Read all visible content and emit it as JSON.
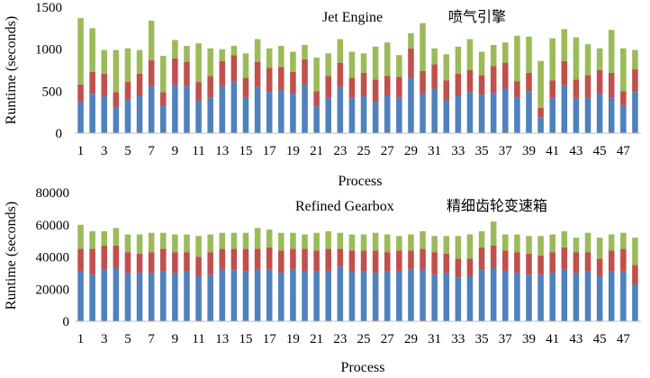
{
  "chart_data": [
    {
      "type": "bar",
      "stacked": true,
      "title": "Jet Engine",
      "subtitle": "喷气引擎",
      "xlabel": "Process",
      "ylabel": "Runtime (seconds)",
      "ylim": [
        0,
        1500
      ],
      "yticks": [
        0,
        500,
        1000,
        1500
      ],
      "xtick_labels": [
        "1",
        "3",
        "5",
        "7",
        "9",
        "11",
        "13",
        "15",
        "17",
        "19",
        "21",
        "23",
        "25",
        "27",
        "29",
        "31",
        "33",
        "35",
        "37",
        "39",
        "41",
        "43",
        "45",
        "47"
      ],
      "grid": false,
      "legend": "none",
      "colors": [
        "#4f81bd",
        "#c0504d",
        "#9bbb59"
      ],
      "categories": [
        "1",
        "2",
        "3",
        "4",
        "5",
        "6",
        "7",
        "8",
        "9",
        "10",
        "11",
        "12",
        "13",
        "14",
        "15",
        "16",
        "17",
        "18",
        "19",
        "20",
        "21",
        "22",
        "23",
        "24",
        "25",
        "26",
        "27",
        "28",
        "29",
        "30",
        "31",
        "32",
        "33",
        "34",
        "35",
        "36",
        "37",
        "38",
        "39",
        "40",
        "41",
        "42",
        "43",
        "44",
        "45",
        "46",
        "47",
        "48"
      ],
      "series": [
        {
          "values": [
            370,
            470,
            440,
            310,
            400,
            450,
            560,
            320,
            580,
            560,
            390,
            420,
            560,
            620,
            420,
            550,
            490,
            510,
            470,
            580,
            320,
            420,
            550,
            420,
            440,
            380,
            450,
            420,
            660,
            470,
            530,
            390,
            450,
            490,
            460,
            480,
            530,
            420,
            500,
            190,
            420,
            570,
            410,
            420,
            470,
            420,
            330,
            490
          ]
        },
        {
          "values": [
            210,
            260,
            270,
            180,
            210,
            260,
            310,
            170,
            310,
            290,
            220,
            260,
            300,
            310,
            240,
            300,
            290,
            280,
            260,
            300,
            180,
            260,
            290,
            240,
            280,
            260,
            230,
            250,
            350,
            270,
            290,
            240,
            260,
            260,
            230,
            320,
            310,
            200,
            220,
            110,
            210,
            290,
            230,
            270,
            280,
            300,
            170,
            270
          ]
        },
        {
          "values": [
            790,
            520,
            280,
            500,
            400,
            280,
            470,
            430,
            220,
            190,
            460,
            330,
            140,
            110,
            290,
            270,
            230,
            250,
            240,
            170,
            400,
            270,
            280,
            310,
            230,
            390,
            400,
            260,
            180,
            570,
            190,
            310,
            320,
            370,
            280,
            250,
            240,
            540,
            430,
            560,
            500,
            380,
            500,
            370,
            260,
            510,
            510,
            230
          ]
        }
      ]
    },
    {
      "type": "bar",
      "stacked": true,
      "title": "Refined Gearbox",
      "subtitle": "精细齿轮变速箱",
      "xlabel": "Process",
      "ylabel": "Runtime (seconds)",
      "ylim": [
        0,
        80000
      ],
      "yticks": [
        0,
        20000,
        40000,
        60000,
        80000
      ],
      "xtick_labels": [
        "1",
        "3",
        "5",
        "7",
        "9",
        "11",
        "13",
        "15",
        "17",
        "19",
        "21",
        "23",
        "25",
        "27",
        "29",
        "31",
        "33",
        "35",
        "37",
        "39",
        "41",
        "43",
        "45",
        "47"
      ],
      "grid": false,
      "legend": "none",
      "colors": [
        "#4f81bd",
        "#c0504d",
        "#9bbb59"
      ],
      "categories": [
        "1",
        "2",
        "3",
        "4",
        "5",
        "6",
        "7",
        "8",
        "9",
        "10",
        "11",
        "12",
        "13",
        "14",
        "15",
        "16",
        "17",
        "18",
        "19",
        "20",
        "21",
        "22",
        "23",
        "24",
        "25",
        "26",
        "27",
        "28",
        "29",
        "30",
        "31",
        "32",
        "33",
        "34",
        "35",
        "36",
        "37",
        "38",
        "39",
        "40",
        "41",
        "42",
        "43",
        "44",
        "45",
        "46",
        "47",
        "48"
      ],
      "series": [
        {
          "values": [
            31000,
            29000,
            32000,
            33000,
            30000,
            30000,
            30000,
            31000,
            30000,
            31000,
            28000,
            29000,
            32000,
            32000,
            31000,
            32000,
            32000,
            30000,
            32000,
            31000,
            31000,
            31000,
            34000,
            31000,
            31000,
            30000,
            31000,
            31000,
            32000,
            32000,
            29000,
            30000,
            27000,
            28000,
            32000,
            33000,
            31000,
            30000,
            29000,
            29000,
            30000,
            32000,
            30000,
            31000,
            28000,
            31000,
            31000,
            23000
          ]
        },
        {
          "values": [
            14000,
            16000,
            15000,
            14000,
            13000,
            12000,
            13000,
            14000,
            13000,
            12000,
            12000,
            14000,
            13000,
            13000,
            14000,
            13000,
            14000,
            14000,
            13000,
            14000,
            13000,
            14000,
            11000,
            13000,
            13000,
            14000,
            12000,
            13000,
            12000,
            13000,
            14000,
            12000,
            12000,
            11000,
            14000,
            14000,
            13000,
            13000,
            13000,
            12000,
            13000,
            14000,
            13000,
            12000,
            11000,
            13000,
            14000,
            12000
          ]
        },
        {
          "values": [
            15000,
            11000,
            9000,
            11000,
            11000,
            12000,
            12000,
            10000,
            11000,
            11000,
            13000,
            11000,
            10000,
            10000,
            10000,
            13000,
            11000,
            11000,
            10000,
            9000,
            11000,
            11000,
            10000,
            10000,
            10000,
            11000,
            11000,
            9000,
            10000,
            11000,
            10000,
            11000,
            14000,
            15000,
            10000,
            15000,
            10000,
            11000,
            11000,
            12000,
            11000,
            10000,
            9000,
            12000,
            13000,
            10000,
            10000,
            17000
          ]
        }
      ]
    }
  ]
}
